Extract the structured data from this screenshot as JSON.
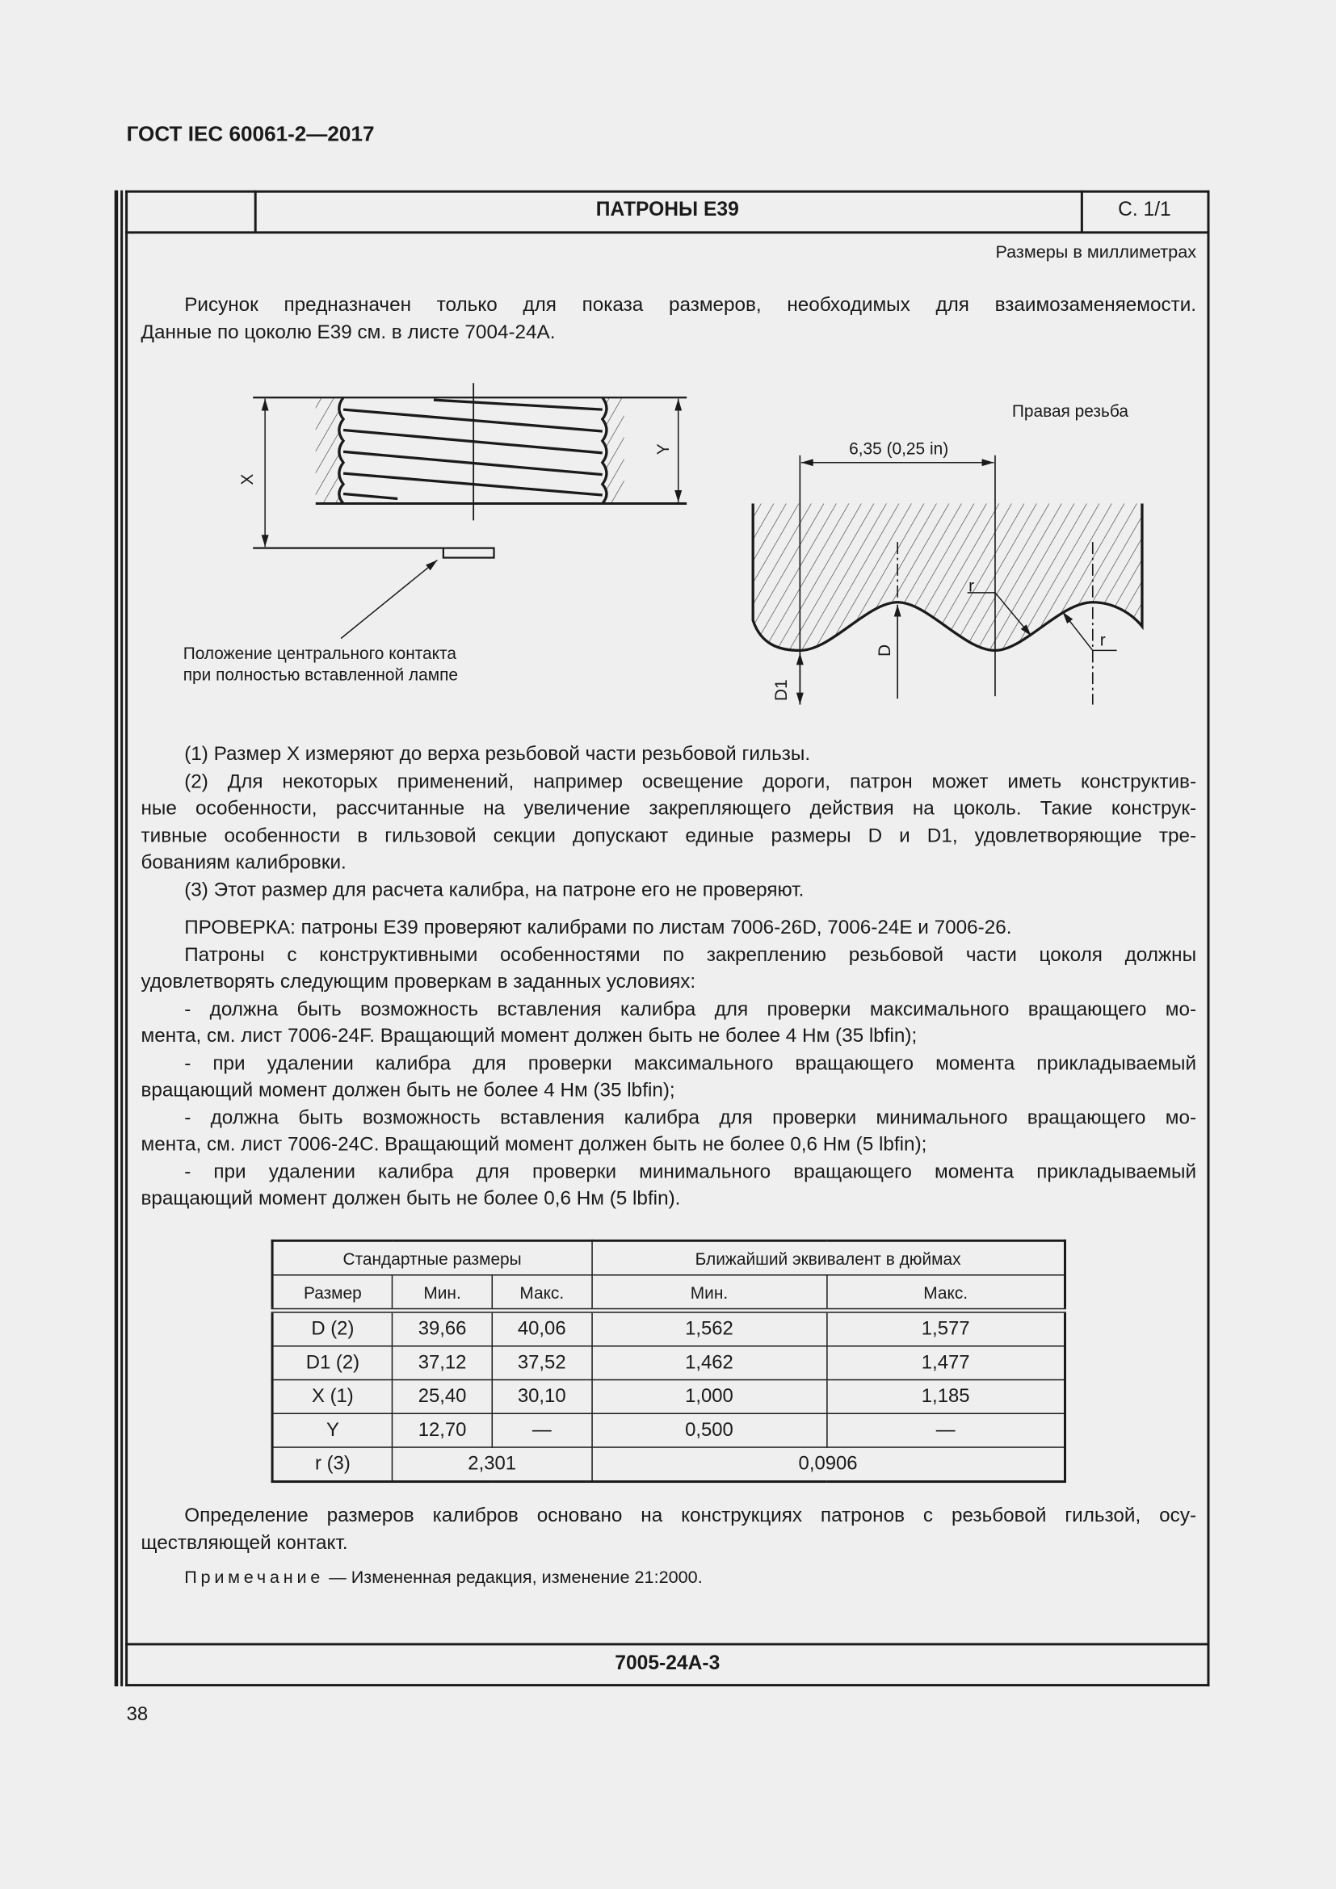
{
  "document": {
    "standard": "ГОСТ IEC 60061-2—2017",
    "sheet_title": "ПАТРОНЫ E39",
    "sheet_page": "С. 1/1",
    "units_note": "Размеры в миллиметрах",
    "intro": [
      "Рисунок предназначен только для показа размеров, необходимых для взаимозаменяемости.",
      "Данные по цоколю E39 см. в листе 7004-24A."
    ],
    "figure": {
      "label_x": "X",
      "label_y": "Y",
      "contact_caption": [
        "Положение центрального контакта",
        "при полностью вставленной лампе"
      ],
      "thread_direction": "Правая резьба",
      "pitch": "6,35 (0,25 in)",
      "label_d": "D",
      "label_d1": "D1",
      "label_r": "r"
    },
    "notes": [
      "(1) Размер X измеряют до верха резьбовой части резьбовой гильзы.",
      "(2) Для некоторых применений, например освещение дороги, патрон может иметь конструктив-",
      "ные особенности, рассчитанные на увеличение закрепляющего действия на цоколь. Такие конструк-",
      "тивные особенности в гильзовой секции допускают единые размеры D и D1, удовлетворяющие тре-",
      "бованиям калибровки.",
      "(3) Этот размер для расчета калибра, на патроне его не проверяют."
    ],
    "check": [
      "ПРОВЕРКА: патроны E39 проверяют калибрами по листам 7006-26D, 7006-24E и 7006-26.",
      "Патроны с конструктивными особенностями по закреплению резьбовой части цоколя должны",
      "удовлетворять следующим проверкам в заданных условиях:",
      "- должна быть возможность вставления калибра для проверки максимального вращающего мо-",
      "мента, см. лист 7006-24F. Вращающий момент должен быть не более 4 Нм (35 lbfin);",
      "- при удалении калибра для проверки максимального вращающего момента прикладываемый",
      "вращающий момент должен быть не более 4 Нм (35 lbfin);",
      "- должна быть возможность вставления калибра для проверки минимального вращающего мо-",
      "мента, см. лист 7006-24C. Вращающий момент должен быть не более 0,6 Нм (5 lbfin);",
      "- при удалении калибра для проверки минимального вращающего момента прикладываемый",
      "вращающий момент должен быть не более 0,6 Нм (5 lbfin)."
    ],
    "table": {
      "group_standard": "Стандартные размеры",
      "group_inches": "Ближайший эквивалент в дюймах",
      "headers": [
        "Размер",
        "Мин.",
        "Макс.",
        "Мин.",
        "Макс."
      ],
      "rows": [
        [
          "D (2)",
          "39,66",
          "40,06",
          "1,562",
          "1,577"
        ],
        [
          "D1 (2)",
          "37,12",
          "37,52",
          "1,462",
          "1,477"
        ],
        [
          "X (1)",
          "25,40",
          "30,10",
          "1,000",
          "1,185"
        ],
        [
          "Y",
          "12,70",
          "—",
          "0,500",
          "—"
        ]
      ],
      "r_row": [
        "r (3)",
        "2,301",
        "0,0906"
      ]
    },
    "final": [
      "Определение размеров калибров основано на конструкциях патронов с резьбовой гильзой, осу-",
      "ществляющей контакт."
    ],
    "note_label": "Примечание",
    "note_text": " — Измененная редакция, изменение 21:2000.",
    "sheet_code": "7005-24A-3",
    "page_number": "38"
  }
}
